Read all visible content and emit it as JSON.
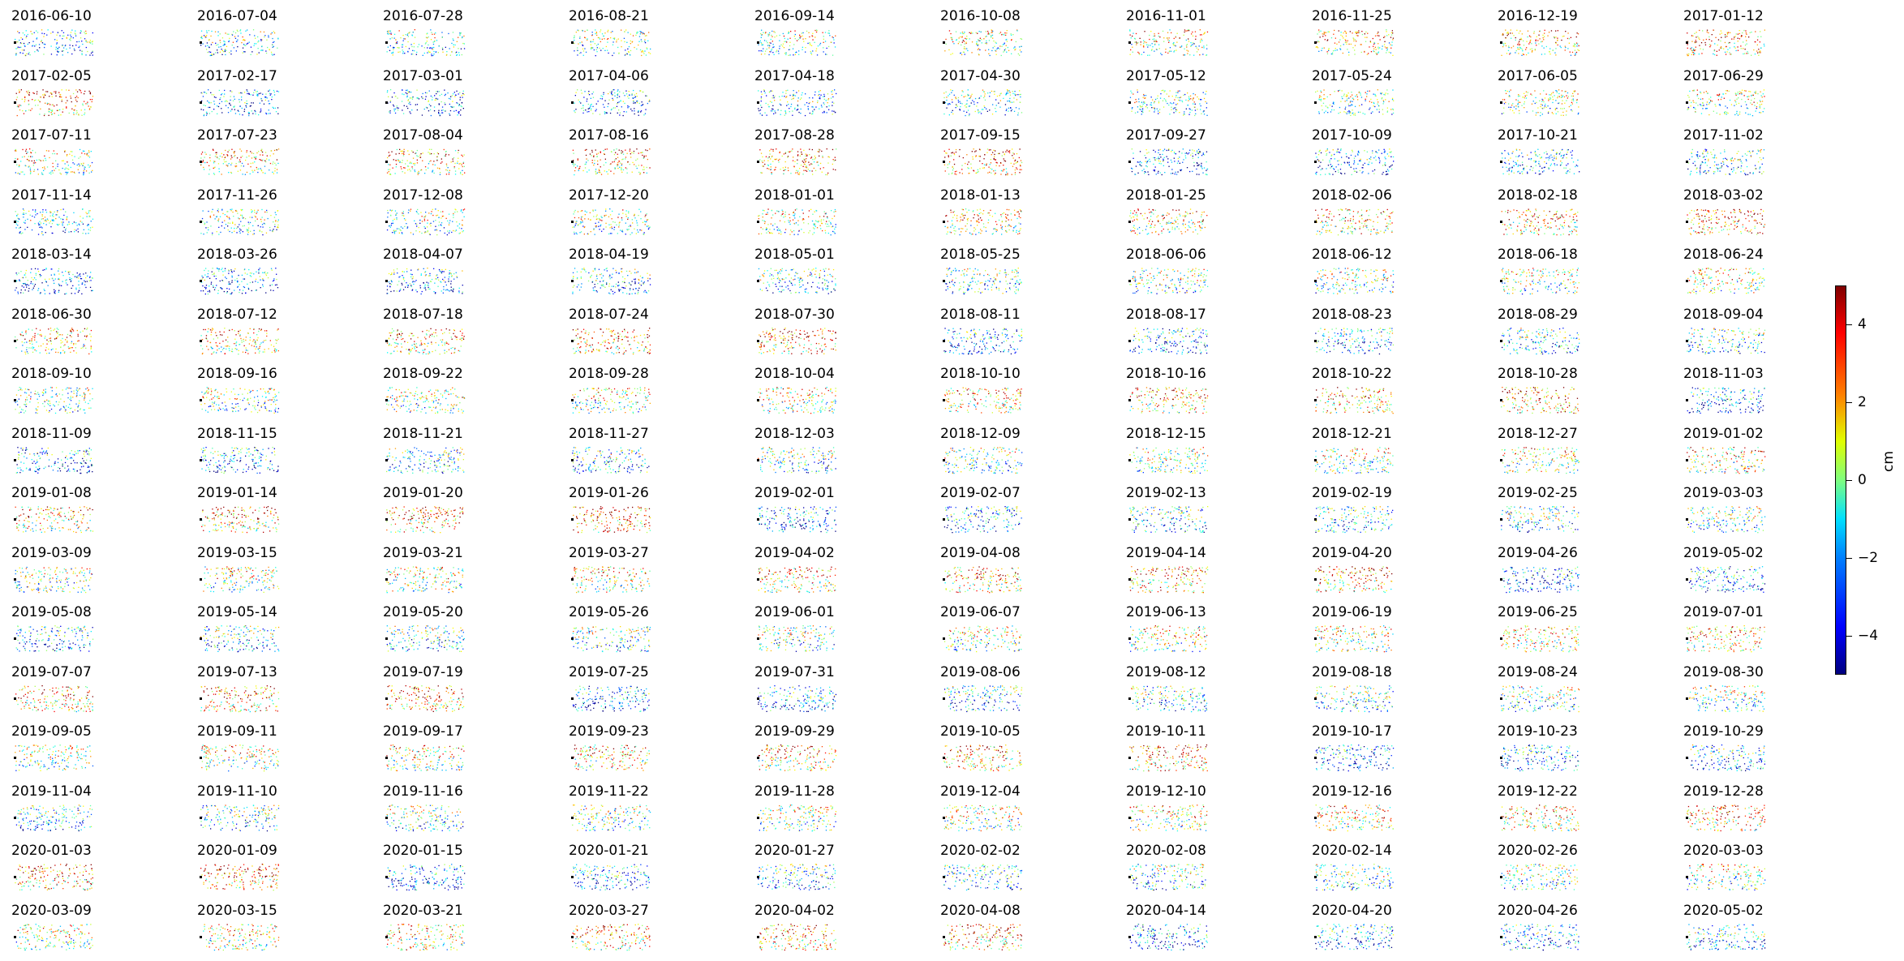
{
  "chart_data": {
    "type": "scatter",
    "layout": "small-multiples-grid",
    "grid": false,
    "colormap": "jet",
    "color_range": [
      -5,
      5
    ],
    "colorbar": {
      "label": "cm",
      "ticks": [
        4,
        2,
        0,
        -2,
        -4
      ],
      "tick_labels": [
        "4",
        "2",
        "0",
        "−2",
        "−4"
      ],
      "placement": "right"
    },
    "columns": 10,
    "panels": [
      {
        "title": "2016-06-10"
      },
      {
        "title": "2016-07-04"
      },
      {
        "title": "2016-07-28"
      },
      {
        "title": "2016-08-21"
      },
      {
        "title": "2016-09-14"
      },
      {
        "title": "2016-10-08"
      },
      {
        "title": "2016-11-01"
      },
      {
        "title": "2016-11-25"
      },
      {
        "title": "2016-12-19"
      },
      {
        "title": "2017-01-12"
      },
      {
        "title": "2017-02-05"
      },
      {
        "title": "2017-02-17"
      },
      {
        "title": "2017-03-01"
      },
      {
        "title": "2017-04-06"
      },
      {
        "title": "2017-04-18"
      },
      {
        "title": "2017-04-30"
      },
      {
        "title": "2017-05-12"
      },
      {
        "title": "2017-05-24"
      },
      {
        "title": "2017-06-05"
      },
      {
        "title": "2017-06-29"
      },
      {
        "title": "2017-07-11"
      },
      {
        "title": "2017-07-23"
      },
      {
        "title": "2017-08-04"
      },
      {
        "title": "2017-08-16"
      },
      {
        "title": "2017-08-28"
      },
      {
        "title": "2017-09-15"
      },
      {
        "title": "2017-09-27"
      },
      {
        "title": "2017-10-09"
      },
      {
        "title": "2017-10-21"
      },
      {
        "title": "2017-11-02"
      },
      {
        "title": "2017-11-14"
      },
      {
        "title": "2017-11-26"
      },
      {
        "title": "2017-12-08"
      },
      {
        "title": "2017-12-20"
      },
      {
        "title": "2018-01-01"
      },
      {
        "title": "2018-01-13"
      },
      {
        "title": "2018-01-25"
      },
      {
        "title": "2018-02-06"
      },
      {
        "title": "2018-02-18"
      },
      {
        "title": "2018-03-02"
      },
      {
        "title": "2018-03-14"
      },
      {
        "title": "2018-03-26"
      },
      {
        "title": "2018-04-07"
      },
      {
        "title": "2018-04-19"
      },
      {
        "title": "2018-05-01"
      },
      {
        "title": "2018-05-25"
      },
      {
        "title": "2018-06-06"
      },
      {
        "title": "2018-06-12"
      },
      {
        "title": "2018-06-18"
      },
      {
        "title": "2018-06-24"
      },
      {
        "title": "2018-06-30"
      },
      {
        "title": "2018-07-12"
      },
      {
        "title": "2018-07-18"
      },
      {
        "title": "2018-07-24"
      },
      {
        "title": "2018-07-30"
      },
      {
        "title": "2018-08-11"
      },
      {
        "title": "2018-08-17"
      },
      {
        "title": "2018-08-23"
      },
      {
        "title": "2018-08-29"
      },
      {
        "title": "2018-09-04"
      },
      {
        "title": "2018-09-10"
      },
      {
        "title": "2018-09-16"
      },
      {
        "title": "2018-09-22"
      },
      {
        "title": "2018-09-28"
      },
      {
        "title": "2018-10-04"
      },
      {
        "title": "2018-10-10"
      },
      {
        "title": "2018-10-16"
      },
      {
        "title": "2018-10-22"
      },
      {
        "title": "2018-10-28"
      },
      {
        "title": "2018-11-03"
      },
      {
        "title": "2018-11-09"
      },
      {
        "title": "2018-11-15"
      },
      {
        "title": "2018-11-21"
      },
      {
        "title": "2018-11-27"
      },
      {
        "title": "2018-12-03"
      },
      {
        "title": "2018-12-09"
      },
      {
        "title": "2018-12-15"
      },
      {
        "title": "2018-12-21"
      },
      {
        "title": "2018-12-27"
      },
      {
        "title": "2019-01-02"
      },
      {
        "title": "2019-01-08"
      },
      {
        "title": "2019-01-14"
      },
      {
        "title": "2019-01-20"
      },
      {
        "title": "2019-01-26"
      },
      {
        "title": "2019-02-01"
      },
      {
        "title": "2019-02-07"
      },
      {
        "title": "2019-02-13"
      },
      {
        "title": "2019-02-19"
      },
      {
        "title": "2019-02-25"
      },
      {
        "title": "2019-03-03"
      },
      {
        "title": "2019-03-09"
      },
      {
        "title": "2019-03-15"
      },
      {
        "title": "2019-03-21"
      },
      {
        "title": "2019-03-27"
      },
      {
        "title": "2019-04-02"
      },
      {
        "title": "2019-04-08"
      },
      {
        "title": "2019-04-14"
      },
      {
        "title": "2019-04-20"
      },
      {
        "title": "2019-04-26"
      },
      {
        "title": "2019-05-02"
      },
      {
        "title": "2019-05-08"
      },
      {
        "title": "2019-05-14"
      },
      {
        "title": "2019-05-20"
      },
      {
        "title": "2019-05-26"
      },
      {
        "title": "2019-06-01"
      },
      {
        "title": "2019-06-07"
      },
      {
        "title": "2019-06-13"
      },
      {
        "title": "2019-06-19"
      },
      {
        "title": "2019-06-25"
      },
      {
        "title": "2019-07-01"
      },
      {
        "title": "2019-07-07"
      },
      {
        "title": "2019-07-13"
      },
      {
        "title": "2019-07-19"
      },
      {
        "title": "2019-07-25"
      },
      {
        "title": "2019-07-31"
      },
      {
        "title": "2019-08-06"
      },
      {
        "title": "2019-08-12"
      },
      {
        "title": "2019-08-18"
      },
      {
        "title": "2019-08-24"
      },
      {
        "title": "2019-08-30"
      },
      {
        "title": "2019-09-05"
      },
      {
        "title": "2019-09-11"
      },
      {
        "title": "2019-09-17"
      },
      {
        "title": "2019-09-23"
      },
      {
        "title": "2019-09-29"
      },
      {
        "title": "2019-10-05"
      },
      {
        "title": "2019-10-11"
      },
      {
        "title": "2019-10-17"
      },
      {
        "title": "2019-10-23"
      },
      {
        "title": "2019-10-29"
      },
      {
        "title": "2019-11-04"
      },
      {
        "title": "2019-11-10"
      },
      {
        "title": "2019-11-16"
      },
      {
        "title": "2019-11-22"
      },
      {
        "title": "2019-11-28"
      },
      {
        "title": "2019-12-04"
      },
      {
        "title": "2019-12-10"
      },
      {
        "title": "2019-12-16"
      },
      {
        "title": "2019-12-22"
      },
      {
        "title": "2019-12-28"
      },
      {
        "title": "2020-01-03"
      },
      {
        "title": "2020-01-09"
      },
      {
        "title": "2020-01-15"
      },
      {
        "title": "2020-01-21"
      },
      {
        "title": "2020-01-27"
      },
      {
        "title": "2020-02-02"
      },
      {
        "title": "2020-02-08"
      },
      {
        "title": "2020-02-14"
      },
      {
        "title": "2020-02-26"
      },
      {
        "title": "2020-03-03"
      },
      {
        "title": "2020-03-09"
      },
      {
        "title": "2020-03-15"
      },
      {
        "title": "2020-03-21"
      },
      {
        "title": "2020-03-27"
      },
      {
        "title": "2020-04-02"
      },
      {
        "title": "2020-04-08"
      },
      {
        "title": "2020-04-14"
      },
      {
        "title": "2020-04-20"
      },
      {
        "title": "2020-04-26"
      },
      {
        "title": "2020-05-02"
      }
    ]
  }
}
